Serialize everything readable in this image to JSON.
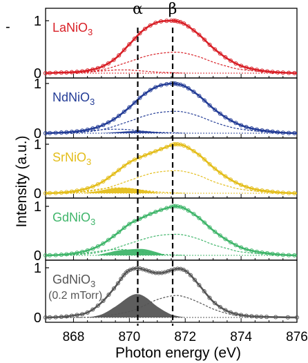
{
  "figure": {
    "ylabel": "Intensity (a.u.)",
    "xlabel": "Photon energy (eV)",
    "x_ticks": [
      868,
      870,
      872,
      874,
      876
    ],
    "y_ticks": [
      0,
      1
    ],
    "marker_alpha": {
      "label": "α",
      "x": 870.3
    },
    "marker_beta": {
      "label": "β",
      "x": 871.55
    },
    "side_mark": "-"
  },
  "chart_data": {
    "type": "line",
    "title": "",
    "xlabel": "Photon energy (eV)",
    "ylabel": "Intensity (a.u.)",
    "xlim": [
      867.0,
      876.0
    ],
    "ylim": [
      0,
      1
    ],
    "grid": false,
    "panels": [
      {
        "label_main": "LaNiO",
        "label_sub": "3",
        "label_extra": "",
        "color": "#d81f26",
        "series": [
          {
            "kind": "fit_total",
            "x": [
              867.0,
              867.5,
              868.0,
              868.5,
              869.0,
              869.5,
              870.0,
              870.5,
              871.0,
              871.5,
              871.7,
              872.0,
              872.5,
              873.0,
              873.5,
              874.0,
              874.5,
              875.0,
              875.5,
              876.0
            ],
            "y": [
              0.0,
              0.01,
              0.02,
              0.05,
              0.12,
              0.28,
              0.55,
              0.82,
              0.97,
              1.0,
              0.99,
              0.93,
              0.73,
              0.48,
              0.28,
              0.14,
              0.07,
              0.03,
              0.01,
              0.0
            ]
          },
          {
            "kind": "component",
            "x": [
              867.0,
              868.0,
              869.0,
              870.0,
              870.5,
              871.0,
              871.6,
              872.0,
              872.5,
              873.0,
              873.5,
              874.0,
              875.0,
              876.0
            ],
            "y": [
              0.0,
              0.01,
              0.06,
              0.22,
              0.31,
              0.37,
              0.4,
              0.38,
              0.31,
              0.21,
              0.13,
              0.07,
              0.02,
              0.0
            ]
          },
          {
            "kind": "component",
            "x": [
              867.0,
              868.0,
              868.5,
              869.0,
              869.5,
              870.0,
              870.5,
              871.0,
              871.5,
              872.0
            ],
            "y": [
              0.0,
              0.01,
              0.02,
              0.04,
              0.06,
              0.06,
              0.04,
              0.02,
              0.01,
              0.0
            ]
          }
        ]
      },
      {
        "label_main": "NdNiO",
        "label_sub": "3",
        "label_extra": "",
        "color": "#233c96",
        "series": [
          {
            "kind": "fit_total",
            "x": [
              867.0,
              867.5,
              868.0,
              868.5,
              869.0,
              869.5,
              870.0,
              870.5,
              871.0,
              871.5,
              871.7,
              872.0,
              872.5,
              873.0,
              873.5,
              874.0,
              874.5,
              875.0,
              875.5,
              876.0
            ],
            "y": [
              0.0,
              0.01,
              0.03,
              0.07,
              0.15,
              0.3,
              0.52,
              0.77,
              0.94,
              1.0,
              0.99,
              0.94,
              0.75,
              0.5,
              0.3,
              0.16,
              0.08,
              0.04,
              0.01,
              0.0
            ]
          },
          {
            "kind": "component",
            "x": [
              867.0,
              868.0,
              869.0,
              870.0,
              870.5,
              871.0,
              871.6,
              872.0,
              872.5,
              873.0,
              873.5,
              874.0,
              875.0,
              876.0
            ],
            "y": [
              0.0,
              0.01,
              0.07,
              0.24,
              0.34,
              0.41,
              0.44,
              0.42,
              0.34,
              0.23,
              0.14,
              0.08,
              0.02,
              0.0
            ]
          },
          {
            "kind": "component",
            "x": [
              867.0,
              868.0,
              868.5,
              869.0,
              869.5,
              870.0,
              870.5,
              871.0,
              871.5,
              872.0
            ],
            "y": [
              0.0,
              0.02,
              0.04,
              0.07,
              0.08,
              0.07,
              0.04,
              0.02,
              0.01,
              0.0
            ]
          },
          {
            "kind": "fill",
            "x": [
              869.0,
              869.5,
              870.0,
              870.3,
              870.6,
              871.0,
              871.5
            ],
            "y": [
              0.0,
              0.02,
              0.04,
              0.05,
              0.04,
              0.02,
              0.0
            ]
          }
        ]
      },
      {
        "label_main": "SrNiO",
        "label_sub": "3",
        "label_extra": "",
        "color": "#e3bd1a",
        "series": [
          {
            "kind": "fit_total",
            "x": [
              867.0,
              867.5,
              868.0,
              868.5,
              869.0,
              869.5,
              870.0,
              870.5,
              871.0,
              871.5,
              871.7,
              872.0,
              872.5,
              873.0,
              873.5,
              874.0,
              874.5,
              875.0,
              875.5,
              876.0
            ],
            "y": [
              0.0,
              0.01,
              0.04,
              0.1,
              0.22,
              0.42,
              0.63,
              0.76,
              0.87,
              0.98,
              1.0,
              0.96,
              0.78,
              0.53,
              0.32,
              0.17,
              0.08,
              0.04,
              0.01,
              0.0
            ]
          },
          {
            "kind": "component",
            "x": [
              867.0,
              868.0,
              869.0,
              870.0,
              870.5,
              871.0,
              871.6,
              872.0,
              872.5,
              873.0,
              873.5,
              874.0,
              875.0,
              876.0
            ],
            "y": [
              0.0,
              0.01,
              0.08,
              0.26,
              0.36,
              0.43,
              0.46,
              0.44,
              0.36,
              0.24,
              0.15,
              0.08,
              0.02,
              0.0
            ]
          },
          {
            "kind": "component",
            "x": [
              867.0,
              868.0,
              868.5,
              869.0,
              869.5,
              870.0,
              870.5,
              871.0,
              871.5,
              872.0
            ],
            "y": [
              0.0,
              0.02,
              0.05,
              0.09,
              0.11,
              0.1,
              0.06,
              0.03,
              0.01,
              0.0
            ]
          },
          {
            "kind": "fill",
            "x": [
              868.3,
              868.8,
              869.3,
              869.8,
              870.3,
              870.8,
              871.2
            ],
            "y": [
              0.0,
              0.04,
              0.09,
              0.11,
              0.08,
              0.03,
              0.0
            ]
          }
        ]
      },
      {
        "label_main": "GdNiO",
        "label_sub": "3",
        "label_extra": "",
        "color": "#3fb56a",
        "series": [
          {
            "kind": "fit_total",
            "x": [
              867.0,
              867.5,
              868.0,
              868.5,
              869.0,
              869.5,
              870.0,
              870.5,
              871.0,
              871.5,
              871.7,
              872.0,
              872.5,
              873.0,
              873.5,
              874.0,
              874.5,
              875.0,
              875.5,
              876.0
            ],
            "y": [
              0.0,
              0.01,
              0.04,
              0.1,
              0.22,
              0.42,
              0.64,
              0.78,
              0.9,
              0.99,
              1.0,
              0.95,
              0.76,
              0.51,
              0.31,
              0.16,
              0.08,
              0.04,
              0.01,
              0.0
            ]
          },
          {
            "kind": "component",
            "x": [
              867.0,
              868.0,
              869.0,
              870.0,
              870.5,
              871.0,
              871.6,
              872.0,
              872.5,
              873.0,
              873.5,
              874.0,
              875.0,
              876.0
            ],
            "y": [
              0.0,
              0.01,
              0.07,
              0.24,
              0.33,
              0.4,
              0.43,
              0.41,
              0.33,
              0.22,
              0.14,
              0.07,
              0.02,
              0.0
            ]
          },
          {
            "kind": "component",
            "x": [
              867.0,
              868.0,
              868.5,
              869.0,
              869.5,
              870.0,
              870.5,
              871.0,
              871.5,
              872.0
            ],
            "y": [
              0.0,
              0.02,
              0.05,
              0.09,
              0.12,
              0.11,
              0.07,
              0.03,
              0.01,
              0.0
            ]
          },
          {
            "kind": "fill",
            "x": [
              868.8,
              869.2,
              869.6,
              870.0,
              870.3,
              870.6,
              871.0,
              871.3
            ],
            "y": [
              0.0,
              0.05,
              0.1,
              0.12,
              0.13,
              0.12,
              0.06,
              0.0
            ]
          }
        ]
      },
      {
        "label_main": "GdNiO",
        "label_sub": "3",
        "label_extra": "(0.2 mTorr)",
        "color": "#555555",
        "series": [
          {
            "kind": "fit_total",
            "x": [
              867.0,
              867.5,
              868.0,
              868.5,
              869.0,
              869.5,
              869.8,
              870.0,
              870.3,
              870.6,
              870.9,
              871.2,
              871.5,
              871.8,
              872.1,
              872.5,
              873.0,
              873.5,
              874.0,
              874.5,
              875.0,
              876.0
            ],
            "y": [
              0.0,
              0.01,
              0.04,
              0.1,
              0.3,
              0.62,
              0.85,
              0.95,
              0.99,
              0.95,
              0.9,
              0.9,
              0.95,
              0.98,
              0.9,
              0.65,
              0.32,
              0.13,
              0.05,
              0.02,
              0.01,
              0.0
            ]
          },
          {
            "kind": "component",
            "x": [
              867.0,
              868.0,
              869.0,
              870.0,
              870.5,
              871.0,
              871.6,
              872.0,
              872.5,
              873.0,
              873.5,
              874.0,
              875.0,
              876.0
            ],
            "y": [
              0.0,
              0.0,
              0.02,
              0.12,
              0.23,
              0.36,
              0.44,
              0.41,
              0.3,
              0.17,
              0.08,
              0.03,
              0.01,
              0.0
            ]
          },
          {
            "kind": "fill",
            "x": [
              868.5,
              869.0,
              869.5,
              870.0,
              870.3,
              870.6,
              871.0,
              871.5,
              872.0
            ],
            "y": [
              0.0,
              0.06,
              0.22,
              0.42,
              0.47,
              0.4,
              0.22,
              0.06,
              0.0
            ]
          }
        ]
      }
    ]
  }
}
